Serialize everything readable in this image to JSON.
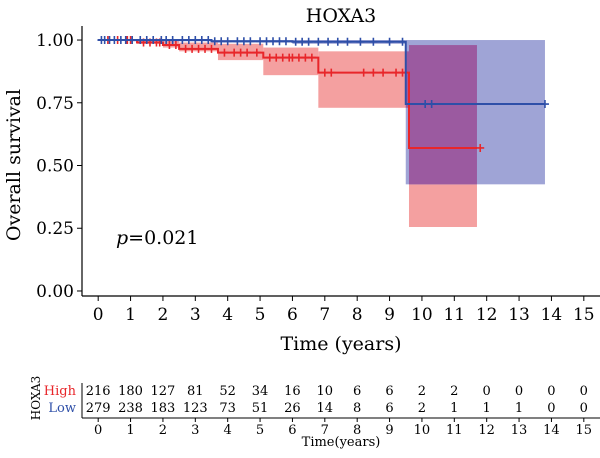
{
  "chart_data": {
    "type": "line",
    "title": "HOXA3",
    "xlabel": "Time (years)",
    "ylabel": "Overall survival",
    "xlim": [
      -0.5,
      15.5
    ],
    "ylim": [
      -0.02,
      1.04
    ],
    "x_ticks": [
      "0",
      "1",
      "2",
      "3",
      "4",
      "5",
      "6",
      "7",
      "8",
      "9",
      "10",
      "11",
      "12",
      "13",
      "14",
      "15"
    ],
    "y_ticks": [
      "0.00",
      "0.25",
      "0.50",
      "0.75",
      "1.00"
    ],
    "annotation": {
      "p_label": "p",
      "p_value": "=0.021"
    },
    "colors": {
      "high": "#e8262a",
      "low": "#2e4fa8",
      "high_band": "#f4a0a0",
      "low_band": "#9fa4d6",
      "overlap": "#9b5aa0"
    },
    "series": [
      {
        "name": "High",
        "steps": [
          [
            0,
            1.0
          ],
          [
            1.2,
            0.99
          ],
          [
            2.0,
            0.98
          ],
          [
            2.5,
            0.965
          ],
          [
            3.7,
            0.95
          ],
          [
            5.1,
            0.93
          ],
          [
            6.8,
            0.87
          ],
          [
            9.6,
            0.57
          ],
          [
            11.7,
            0.57
          ]
        ],
        "ci": [
          [
            0,
            1.0,
            1.0
          ],
          [
            1.2,
            1.0,
            0.985
          ],
          [
            2.0,
            1.0,
            0.97
          ],
          [
            2.5,
            0.99,
            0.955
          ],
          [
            3.7,
            0.985,
            0.92
          ],
          [
            5.1,
            0.97,
            0.86
          ],
          [
            6.8,
            0.955,
            0.73
          ],
          [
            9.6,
            0.98,
            0.255
          ],
          [
            11.7,
            0.98,
            0.255
          ]
        ],
        "censor_x": [
          0.3,
          0.6,
          0.9,
          1.0,
          1.4,
          1.6,
          1.8,
          1.9,
          2.2,
          2.4,
          2.7,
          2.9,
          3.1,
          3.3,
          3.5,
          3.9,
          4.2,
          4.4,
          4.6,
          4.9,
          5.3,
          5.5,
          5.7,
          5.9,
          6.0,
          6.2,
          6.4,
          6.6,
          7.0,
          7.2,
          8.2,
          8.5,
          8.8,
          9.2,
          9.4,
          11.8
        ]
      },
      {
        "name": "Low",
        "steps": [
          [
            0,
            1.0
          ],
          [
            1.0,
            1.0
          ],
          [
            3.5,
            0.995
          ],
          [
            6.0,
            0.993
          ],
          [
            9.5,
            0.745
          ],
          [
            13.8,
            0.745
          ]
        ],
        "ci": [
          [
            0,
            1.0,
            1.0
          ],
          [
            1.0,
            1.0,
            0.995
          ],
          [
            3.5,
            1.0,
            0.99
          ],
          [
            6.0,
            1.0,
            0.985
          ],
          [
            9.5,
            1.0,
            0.425
          ],
          [
            13.8,
            1.0,
            0.425
          ]
        ],
        "censor_x": [
          0.1,
          0.2,
          0.35,
          0.5,
          0.7,
          0.85,
          1.05,
          1.3,
          1.5,
          1.7,
          1.95,
          2.1,
          2.3,
          2.6,
          2.8,
          3.0,
          3.2,
          3.4,
          3.6,
          3.8,
          4.0,
          4.3,
          4.5,
          4.7,
          5.0,
          5.2,
          5.4,
          5.6,
          5.8,
          6.1,
          6.3,
          6.5,
          6.8,
          7.1,
          7.4,
          7.7,
          8.1,
          8.5,
          9.0,
          9.4,
          10.1,
          10.3,
          13.8
        ]
      }
    ]
  },
  "risk_table": {
    "title": "HOXA3",
    "xlabel": "Time(years)",
    "rows": [
      {
        "label": "High",
        "color": "#e8262a",
        "values": [
          "216",
          "180",
          "127",
          "81",
          "52",
          "34",
          "16",
          "10",
          "6",
          "6",
          "2",
          "2",
          "0",
          "0",
          "0",
          "0"
        ]
      },
      {
        "label": "Low",
        "color": "#2e4fa8",
        "values": [
          "279",
          "238",
          "183",
          "123",
          "73",
          "51",
          "26",
          "14",
          "8",
          "6",
          "2",
          "1",
          "1",
          "1",
          "0",
          "0"
        ]
      }
    ],
    "ticks": [
      "0",
      "1",
      "2",
      "3",
      "4",
      "5",
      "6",
      "7",
      "8",
      "9",
      "10",
      "11",
      "12",
      "13",
      "14",
      "15"
    ]
  }
}
